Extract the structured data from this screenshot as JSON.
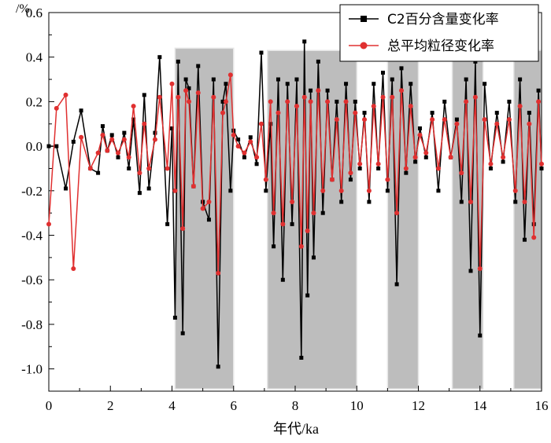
{
  "chart_data": {
    "type": "line",
    "xlabel": "年代/ka",
    "ylabel": "/%",
    "xlim": [
      0,
      16
    ],
    "ylim": [
      -1.1,
      0.6
    ],
    "xticks": [
      0,
      2,
      4,
      6,
      8,
      10,
      12,
      14,
      16
    ],
    "xtick_labels": [
      "0",
      "2",
      "4",
      "6",
      "8",
      "10",
      "12",
      "14",
      "16"
    ],
    "yticks": [
      0.6,
      0.4,
      0.2,
      0.0,
      -0.2,
      -0.4,
      -0.6,
      -0.8,
      -1.0
    ],
    "ytick_labels": [
      "0.6",
      "0.4",
      "0.2",
      "0.0",
      "-0.2",
      "-0.4",
      "-0.6",
      "-0.8",
      "-1.0"
    ],
    "shaded_bands": [
      {
        "x0": 4.1,
        "x1": 6.0,
        "y0": -1.09,
        "y1": 0.44
      },
      {
        "x0": 7.1,
        "x1": 10.0,
        "y0": -1.09,
        "y1": 0.43
      },
      {
        "x0": 11.0,
        "x1": 12.0,
        "y0": -1.09,
        "y1": 0.43
      },
      {
        "x0": 13.1,
        "x1": 14.1,
        "y0": -1.09,
        "y1": 0.43
      },
      {
        "x0": 15.1,
        "x1": 16.0,
        "y0": -1.09,
        "y1": 0.43
      }
    ],
    "legend_position": "top-right",
    "series": [
      {
        "name": "C2百分含量变化率",
        "color": "#000000",
        "marker": "square",
        "x": [
          0.0,
          0.25,
          0.55,
          0.8,
          1.05,
          1.35,
          1.6,
          1.75,
          1.9,
          2.05,
          2.25,
          2.45,
          2.6,
          2.75,
          2.95,
          3.1,
          3.25,
          3.45,
          3.6,
          3.85,
          4.0,
          4.1,
          4.2,
          4.35,
          4.45,
          4.55,
          4.7,
          4.85,
          5.0,
          5.2,
          5.35,
          5.5,
          5.65,
          5.75,
          5.9,
          6.0,
          6.15,
          6.35,
          6.55,
          6.75,
          6.9,
          7.05,
          7.2,
          7.3,
          7.45,
          7.6,
          7.75,
          7.9,
          8.05,
          8.2,
          8.3,
          8.4,
          8.5,
          8.6,
          8.75,
          8.9,
          9.05,
          9.2,
          9.35,
          9.5,
          9.65,
          9.8,
          9.95,
          10.1,
          10.25,
          10.4,
          10.55,
          10.7,
          10.85,
          11.0,
          11.15,
          11.3,
          11.45,
          11.6,
          11.75,
          11.9,
          12.05,
          12.25,
          12.45,
          12.65,
          12.85,
          13.05,
          13.25,
          13.4,
          13.55,
          13.7,
          13.85,
          14.0,
          14.15,
          14.35,
          14.55,
          14.75,
          14.95,
          15.15,
          15.3,
          15.45,
          15.6,
          15.75,
          15.9,
          16.0
        ],
        "y": [
          0.0,
          0.0,
          -0.19,
          0.02,
          0.16,
          -0.1,
          -0.12,
          0.09,
          -0.02,
          0.05,
          -0.05,
          0.06,
          -0.1,
          0.12,
          -0.21,
          0.23,
          -0.19,
          0.06,
          0.4,
          -0.35,
          0.08,
          -0.77,
          0.38,
          -0.84,
          0.3,
          0.26,
          -0.18,
          0.36,
          -0.25,
          -0.33,
          0.3,
          -0.99,
          0.2,
          0.28,
          -0.2,
          0.07,
          0.03,
          -0.05,
          0.04,
          -0.08,
          0.42,
          -0.2,
          0.1,
          -0.45,
          0.3,
          -0.6,
          0.28,
          -0.35,
          0.3,
          -0.95,
          0.47,
          -0.67,
          0.25,
          -0.5,
          0.38,
          -0.3,
          0.25,
          -0.15,
          0.2,
          -0.25,
          0.28,
          -0.15,
          0.2,
          -0.1,
          0.15,
          -0.25,
          0.28,
          -0.1,
          0.33,
          -0.2,
          0.3,
          -0.62,
          0.35,
          -0.12,
          0.28,
          -0.07,
          0.08,
          -0.05,
          0.15,
          -0.2,
          0.2,
          -0.05,
          0.12,
          -0.25,
          0.3,
          -0.56,
          0.38,
          -0.85,
          0.28,
          -0.1,
          0.15,
          -0.07,
          0.2,
          -0.25,
          0.3,
          -0.42,
          0.15,
          -0.35,
          0.25,
          -0.1
        ]
      },
      {
        "name": "总平均粒径变化率",
        "color": "#e03030",
        "marker": "circle",
        "x": [
          0.0,
          0.25,
          0.55,
          0.8,
          1.05,
          1.35,
          1.6,
          1.75,
          1.9,
          2.05,
          2.25,
          2.45,
          2.6,
          2.75,
          2.95,
          3.1,
          3.25,
          3.45,
          3.6,
          3.85,
          4.0,
          4.1,
          4.2,
          4.35,
          4.45,
          4.55,
          4.7,
          4.85,
          5.0,
          5.2,
          5.35,
          5.5,
          5.65,
          5.75,
          5.9,
          6.0,
          6.15,
          6.35,
          6.55,
          6.75,
          6.9,
          7.05,
          7.2,
          7.3,
          7.45,
          7.6,
          7.75,
          7.9,
          8.05,
          8.2,
          8.3,
          8.4,
          8.5,
          8.6,
          8.75,
          8.9,
          9.05,
          9.2,
          9.35,
          9.5,
          9.65,
          9.8,
          9.95,
          10.1,
          10.25,
          10.4,
          10.55,
          10.7,
          10.85,
          11.0,
          11.15,
          11.3,
          11.45,
          11.6,
          11.75,
          11.9,
          12.05,
          12.25,
          12.45,
          12.65,
          12.85,
          13.05,
          13.25,
          13.4,
          13.55,
          13.7,
          13.85,
          14.0,
          14.15,
          14.35,
          14.55,
          14.75,
          14.95,
          15.15,
          15.3,
          15.45,
          15.6,
          15.75,
          15.9,
          16.0
        ],
        "y": [
          -0.35,
          0.17,
          0.23,
          -0.55,
          0.04,
          -0.1,
          -0.03,
          0.05,
          -0.02,
          0.03,
          -0.03,
          0.03,
          -0.05,
          0.18,
          -0.12,
          0.1,
          -0.1,
          0.03,
          0.22,
          -0.1,
          0.28,
          -0.2,
          0.22,
          -0.37,
          0.25,
          0.2,
          -0.18,
          0.24,
          -0.28,
          -0.25,
          0.22,
          -0.57,
          0.15,
          0.2,
          0.32,
          0.05,
          0.0,
          -0.03,
          0.02,
          -0.05,
          0.1,
          -0.15,
          0.2,
          -0.3,
          0.15,
          -0.35,
          0.2,
          -0.25,
          0.18,
          -0.45,
          0.22,
          -0.38,
          0.2,
          -0.3,
          0.25,
          -0.2,
          0.2,
          -0.15,
          0.12,
          -0.2,
          0.2,
          -0.12,
          0.15,
          -0.08,
          0.12,
          -0.2,
          0.18,
          -0.08,
          0.22,
          -0.15,
          0.22,
          -0.3,
          0.25,
          -0.1,
          0.18,
          -0.05,
          0.05,
          -0.03,
          0.12,
          -0.1,
          0.12,
          -0.05,
          0.1,
          -0.12,
          0.2,
          -0.25,
          0.22,
          -0.55,
          0.12,
          -0.08,
          0.1,
          -0.05,
          0.12,
          -0.2,
          0.18,
          -0.25,
          0.1,
          -0.41,
          0.2,
          -0.08
        ]
      }
    ]
  }
}
